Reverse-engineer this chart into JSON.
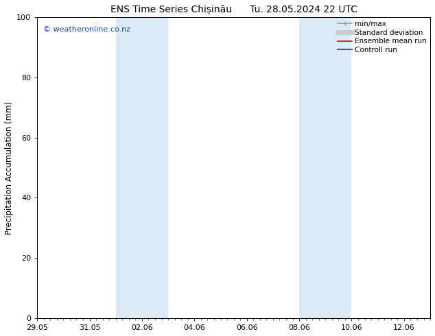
{
  "title": "ENS Time Series Chișinău      Tu. 28.05.2024 22 UTC",
  "ylabel": "Precipitation Accumulation (mm)",
  "ylim": [
    0,
    100
  ],
  "yticks": [
    0,
    20,
    40,
    60,
    80,
    100
  ],
  "xtick_labels": [
    "29.05",
    "31.05",
    "02.06",
    "04.06",
    "06.06",
    "08.06",
    "10.06",
    "12.06"
  ],
  "xtick_dates": [
    "2024-05-29",
    "2024-05-31",
    "2024-06-02",
    "2024-06-04",
    "2024-06-06",
    "2024-06-08",
    "2024-06-10",
    "2024-06-12"
  ],
  "xlim_start_date": "2024-05-29",
  "xlim_end_date": "2024-06-13",
  "shaded_bands": [
    {
      "xstart": "2024-06-01",
      "xend": "2024-06-03",
      "color": "#daeaf6"
    },
    {
      "xstart": "2024-06-08",
      "xend": "2024-06-10",
      "color": "#daeaf6"
    }
  ],
  "watermark_text": "© weatheronline.co.nz",
  "watermark_color": "#1a44cc",
  "background_color": "#ffffff",
  "legend_items": [
    {
      "label": "min/max",
      "color": "#999999",
      "lw": 1.2,
      "ls": "-",
      "type": "line_caps"
    },
    {
      "label": "Standard deviation",
      "color": "#cccccc",
      "lw": 5,
      "ls": "-",
      "type": "line"
    },
    {
      "label": "Ensemble mean run",
      "color": "#dd0000",
      "lw": 1.2,
      "ls": "-",
      "type": "line"
    },
    {
      "label": "Controll run",
      "color": "#006600",
      "lw": 1.2,
      "ls": "-",
      "type": "line"
    }
  ],
  "title_fontsize": 10,
  "ylabel_fontsize": 8.5,
  "tick_fontsize": 8,
  "legend_fontsize": 7.5,
  "watermark_fontsize": 8
}
